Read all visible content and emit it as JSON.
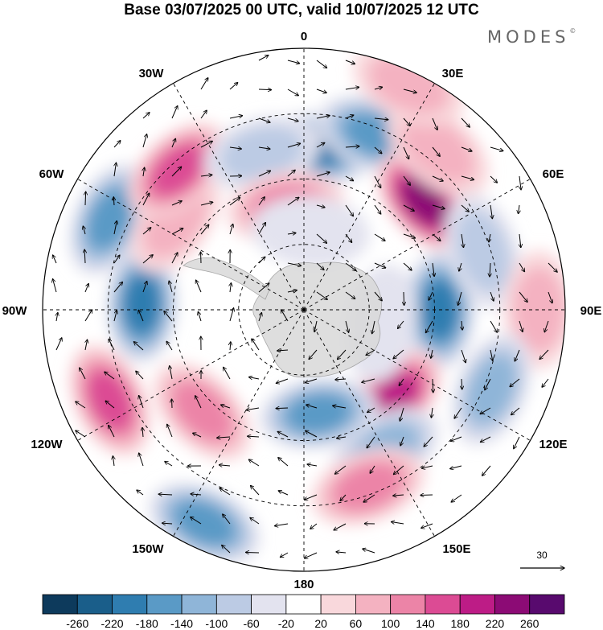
{
  "title": "Base 03/07/2025 00 UTC, valid 10/07/2025 12 UTC",
  "brand": "MODES",
  "brand_mark": "©",
  "map": {
    "projection": "south-polar-stereographic",
    "meridian_labels": [
      "0",
      "30E",
      "60E",
      "90E",
      "120E",
      "150E",
      "180",
      "150W",
      "120W",
      "90W",
      "60W",
      "30W"
    ],
    "vector_reference_value": "30",
    "graticule_color": "#000000",
    "land_color": "#d9d9d9"
  },
  "colorbar": {
    "ticks": [
      "-260",
      "-220",
      "-180",
      "-140",
      "-100",
      "-60",
      "-20",
      "20",
      "60",
      "100",
      "140",
      "180",
      "220",
      "260"
    ],
    "colors": [
      "#0d3a5c",
      "#1a5e8a",
      "#2f7db0",
      "#5a9ac6",
      "#8fb5d8",
      "#bccbe4",
      "#e3e3ef",
      "#ffffff",
      "#f9d8dc",
      "#f4b2c1",
      "#ec84a7",
      "#dc4b94",
      "#bd1c86",
      "#8c0b75",
      "#580a6e"
    ]
  },
  "anomaly_cells": [
    {
      "lon": 5,
      "r": 0.62,
      "value": -200
    },
    {
      "lon": 22,
      "r": 0.72,
      "value": -150
    },
    {
      "lon": 48,
      "r": 0.62,
      "value": 230
    },
    {
      "lon": 40,
      "r": 0.8,
      "value": 80
    },
    {
      "lon": 90,
      "r": 0.52,
      "value": -190
    },
    {
      "lon": 72,
      "r": 0.72,
      "value": -80
    },
    {
      "lon": 90,
      "r": 0.9,
      "value": 90
    },
    {
      "lon": 113,
      "r": 0.78,
      "value": -120
    },
    {
      "lon": 135,
      "r": 0.48,
      "value": 210
    },
    {
      "lon": 150,
      "r": 0.62,
      "value": -130
    },
    {
      "lon": 160,
      "r": 0.72,
      "value": 120
    },
    {
      "lon": 172,
      "r": 0.4,
      "value": -160
    },
    {
      "lon": -155,
      "r": 0.9,
      "value": -150
    },
    {
      "lon": -135,
      "r": 0.55,
      "value": 100
    },
    {
      "lon": -115,
      "r": 0.82,
      "value": 150
    },
    {
      "lon": -88,
      "r": 0.62,
      "value": -180
    },
    {
      "lon": -65,
      "r": 0.82,
      "value": -160
    },
    {
      "lon": -55,
      "r": 0.6,
      "value": 90
    },
    {
      "lon": -42,
      "r": 0.72,
      "value": 140
    },
    {
      "lon": -15,
      "r": 0.62,
      "value": -60
    },
    {
      "lon": -10,
      "r": 0.4,
      "value": 110
    },
    {
      "lon": 5,
      "r": 0.3,
      "value": -40
    },
    {
      "lon": 100,
      "r": 0.3,
      "value": -30
    },
    {
      "lon": 25,
      "r": 0.95,
      "value": 60
    }
  ]
}
